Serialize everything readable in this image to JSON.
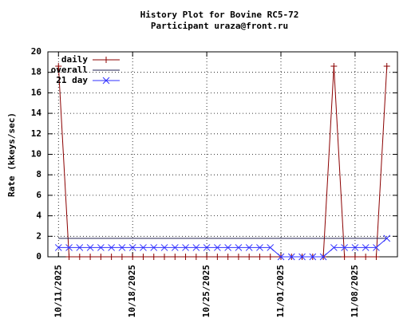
{
  "chart_data": {
    "type": "line",
    "title": "History Plot for Bovine RC5-72",
    "subtitle": "Participant uraza@front.ru",
    "y_label": "Rate (kkeys/sec)",
    "x": [
      "10/11/2025",
      "10/12/2025",
      "10/13/2025",
      "10/14/2025",
      "10/15/2025",
      "10/16/2025",
      "10/17/2025",
      "10/18/2025",
      "10/19/2025",
      "10/20/2025",
      "10/21/2025",
      "10/22/2025",
      "10/23/2025",
      "10/24/2025",
      "10/25/2025",
      "10/26/2025",
      "10/27/2025",
      "10/28/2025",
      "10/29/2025",
      "10/30/2025",
      "10/31/2025",
      "11/01/2025",
      "11/02/2025",
      "11/03/2025",
      "11/04/2025",
      "11/05/2025",
      "11/06/2025",
      "11/07/2025",
      "11/08/2025",
      "11/09/2025",
      "11/10/2025",
      "11/11/2025"
    ],
    "series": [
      {
        "name": "daily",
        "color": "#8b0000",
        "marker": "plus",
        "values": [
          18.6,
          0,
          0,
          0,
          0,
          0,
          0,
          0,
          0,
          0,
          0,
          0,
          0,
          0,
          0,
          0,
          0,
          0,
          0,
          0,
          0,
          0,
          0,
          0,
          0,
          0,
          18.6,
          0,
          0,
          0,
          0,
          18.6
        ]
      },
      {
        "name": "overall",
        "color": "#202050",
        "marker": "none",
        "values": [
          1.8,
          1.8,
          1.8,
          1.8,
          1.8,
          1.8,
          1.8,
          1.8,
          1.8,
          1.8,
          1.8,
          1.8,
          1.8,
          1.8,
          1.8,
          1.8,
          1.8,
          1.8,
          1.8,
          1.8,
          1.8,
          1.8,
          1.8,
          1.8,
          1.8,
          1.8,
          1.8,
          1.8,
          1.8,
          1.8,
          1.8,
          1.8
        ]
      },
      {
        "name": "21 day",
        "color": "#3030ff",
        "marker": "cross",
        "values": [
          0.9,
          0.9,
          0.9,
          0.9,
          0.9,
          0.9,
          0.9,
          0.9,
          0.9,
          0.9,
          0.9,
          0.9,
          0.9,
          0.9,
          0.9,
          0.9,
          0.9,
          0.9,
          0.9,
          0.9,
          0.9,
          0,
          0,
          0,
          0,
          0,
          0.9,
          0.9,
          0.9,
          0.9,
          0.9,
          1.8
        ]
      }
    ],
    "xlim": [
      "10/10/2025",
      "11/12/2025"
    ],
    "xticks": [
      "10/11/2025",
      "10/18/2025",
      "10/25/2025",
      "11/01/2025",
      "11/08/2025"
    ],
    "ylim": [
      0,
      20
    ],
    "yticks": [
      0,
      2,
      4,
      6,
      8,
      10,
      12,
      14,
      16,
      18,
      20
    ],
    "grid": true,
    "legend": "top-left"
  }
}
